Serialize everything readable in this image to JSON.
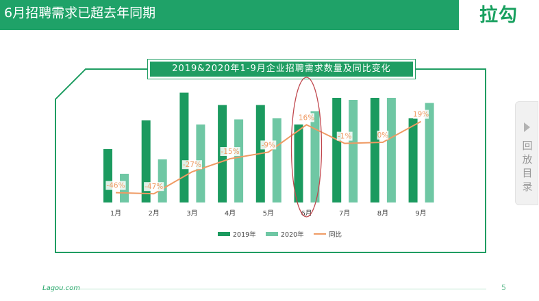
{
  "header": {
    "title": "6月招聘需求已超去年同期",
    "logo": "拉勾",
    "accent_color": "#1fa268"
  },
  "footer": {
    "brand": "Lagou.com",
    "page_number": "5"
  },
  "side_panel": {
    "label": "回放目录",
    "icon": "play-arrow-icon"
  },
  "chart_data": {
    "type": "bar",
    "title": "2019&2020年1-9月企业招聘需求数量及同比变化",
    "categories": [
      "1月",
      "2月",
      "3月",
      "4月",
      "5月",
      "6月",
      "7月",
      "8月",
      "9月"
    ],
    "series": [
      {
        "name": "2019年",
        "kind": "bar",
        "color": "#1b9a5f",
        "values": [
          0.52,
          0.8,
          1.07,
          0.95,
          0.95,
          0.76,
          1.02,
          1.02,
          0.82
        ]
      },
      {
        "name": "2020年",
        "kind": "bar",
        "color": "#6fc7a4",
        "values": [
          0.28,
          0.42,
          0.76,
          0.81,
          0.82,
          0.89,
          1.0,
          1.02,
          0.97
        ]
      },
      {
        "name": "同比",
        "kind": "line",
        "color": "#ef9a63",
        "values": [
          -46,
          -47,
          -27,
          -15,
          -9,
          16,
          -1,
          0,
          19
        ],
        "labels": [
          "-46%",
          "-47%",
          "-27%",
          "-15%",
          "-9%",
          "16%",
          "-1%",
          "0%",
          "19%"
        ]
      }
    ],
    "highlight_category": "6月",
    "highlight_color": "#c0474d",
    "legend_position": "bottom",
    "grid": false
  }
}
